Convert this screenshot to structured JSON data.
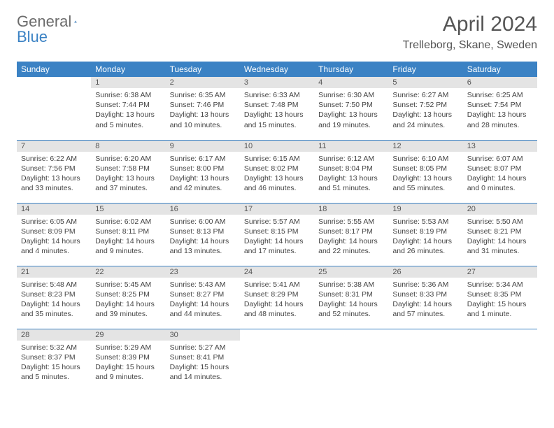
{
  "logo": {
    "text_general": "General",
    "text_blue": "Blue"
  },
  "title": "April 2024",
  "location": "Trelleborg, Skane, Sweden",
  "colors": {
    "header_bg": "#3b82c4",
    "header_text": "#ffffff",
    "daynum_bg": "#e4e4e4",
    "row_divider": "#3b82c4",
    "body_text": "#444444",
    "title_text": "#555555"
  },
  "weekday_headers": [
    "Sunday",
    "Monday",
    "Tuesday",
    "Wednesday",
    "Thursday",
    "Friday",
    "Saturday"
  ],
  "weeks": [
    [
      null,
      {
        "n": "1",
        "sunrise": "Sunrise: 6:38 AM",
        "sunset": "Sunset: 7:44 PM",
        "daylight": "Daylight: 13 hours and 5 minutes."
      },
      {
        "n": "2",
        "sunrise": "Sunrise: 6:35 AM",
        "sunset": "Sunset: 7:46 PM",
        "daylight": "Daylight: 13 hours and 10 minutes."
      },
      {
        "n": "3",
        "sunrise": "Sunrise: 6:33 AM",
        "sunset": "Sunset: 7:48 PM",
        "daylight": "Daylight: 13 hours and 15 minutes."
      },
      {
        "n": "4",
        "sunrise": "Sunrise: 6:30 AM",
        "sunset": "Sunset: 7:50 PM",
        "daylight": "Daylight: 13 hours and 19 minutes."
      },
      {
        "n": "5",
        "sunrise": "Sunrise: 6:27 AM",
        "sunset": "Sunset: 7:52 PM",
        "daylight": "Daylight: 13 hours and 24 minutes."
      },
      {
        "n": "6",
        "sunrise": "Sunrise: 6:25 AM",
        "sunset": "Sunset: 7:54 PM",
        "daylight": "Daylight: 13 hours and 28 minutes."
      }
    ],
    [
      {
        "n": "7",
        "sunrise": "Sunrise: 6:22 AM",
        "sunset": "Sunset: 7:56 PM",
        "daylight": "Daylight: 13 hours and 33 minutes."
      },
      {
        "n": "8",
        "sunrise": "Sunrise: 6:20 AM",
        "sunset": "Sunset: 7:58 PM",
        "daylight": "Daylight: 13 hours and 37 minutes."
      },
      {
        "n": "9",
        "sunrise": "Sunrise: 6:17 AM",
        "sunset": "Sunset: 8:00 PM",
        "daylight": "Daylight: 13 hours and 42 minutes."
      },
      {
        "n": "10",
        "sunrise": "Sunrise: 6:15 AM",
        "sunset": "Sunset: 8:02 PM",
        "daylight": "Daylight: 13 hours and 46 minutes."
      },
      {
        "n": "11",
        "sunrise": "Sunrise: 6:12 AM",
        "sunset": "Sunset: 8:04 PM",
        "daylight": "Daylight: 13 hours and 51 minutes."
      },
      {
        "n": "12",
        "sunrise": "Sunrise: 6:10 AM",
        "sunset": "Sunset: 8:05 PM",
        "daylight": "Daylight: 13 hours and 55 minutes."
      },
      {
        "n": "13",
        "sunrise": "Sunrise: 6:07 AM",
        "sunset": "Sunset: 8:07 PM",
        "daylight": "Daylight: 14 hours and 0 minutes."
      }
    ],
    [
      {
        "n": "14",
        "sunrise": "Sunrise: 6:05 AM",
        "sunset": "Sunset: 8:09 PM",
        "daylight": "Daylight: 14 hours and 4 minutes."
      },
      {
        "n": "15",
        "sunrise": "Sunrise: 6:02 AM",
        "sunset": "Sunset: 8:11 PM",
        "daylight": "Daylight: 14 hours and 9 minutes."
      },
      {
        "n": "16",
        "sunrise": "Sunrise: 6:00 AM",
        "sunset": "Sunset: 8:13 PM",
        "daylight": "Daylight: 14 hours and 13 minutes."
      },
      {
        "n": "17",
        "sunrise": "Sunrise: 5:57 AM",
        "sunset": "Sunset: 8:15 PM",
        "daylight": "Daylight: 14 hours and 17 minutes."
      },
      {
        "n": "18",
        "sunrise": "Sunrise: 5:55 AM",
        "sunset": "Sunset: 8:17 PM",
        "daylight": "Daylight: 14 hours and 22 minutes."
      },
      {
        "n": "19",
        "sunrise": "Sunrise: 5:53 AM",
        "sunset": "Sunset: 8:19 PM",
        "daylight": "Daylight: 14 hours and 26 minutes."
      },
      {
        "n": "20",
        "sunrise": "Sunrise: 5:50 AM",
        "sunset": "Sunset: 8:21 PM",
        "daylight": "Daylight: 14 hours and 31 minutes."
      }
    ],
    [
      {
        "n": "21",
        "sunrise": "Sunrise: 5:48 AM",
        "sunset": "Sunset: 8:23 PM",
        "daylight": "Daylight: 14 hours and 35 minutes."
      },
      {
        "n": "22",
        "sunrise": "Sunrise: 5:45 AM",
        "sunset": "Sunset: 8:25 PM",
        "daylight": "Daylight: 14 hours and 39 minutes."
      },
      {
        "n": "23",
        "sunrise": "Sunrise: 5:43 AM",
        "sunset": "Sunset: 8:27 PM",
        "daylight": "Daylight: 14 hours and 44 minutes."
      },
      {
        "n": "24",
        "sunrise": "Sunrise: 5:41 AM",
        "sunset": "Sunset: 8:29 PM",
        "daylight": "Daylight: 14 hours and 48 minutes."
      },
      {
        "n": "25",
        "sunrise": "Sunrise: 5:38 AM",
        "sunset": "Sunset: 8:31 PM",
        "daylight": "Daylight: 14 hours and 52 minutes."
      },
      {
        "n": "26",
        "sunrise": "Sunrise: 5:36 AM",
        "sunset": "Sunset: 8:33 PM",
        "daylight": "Daylight: 14 hours and 57 minutes."
      },
      {
        "n": "27",
        "sunrise": "Sunrise: 5:34 AM",
        "sunset": "Sunset: 8:35 PM",
        "daylight": "Daylight: 15 hours and 1 minute."
      }
    ],
    [
      {
        "n": "28",
        "sunrise": "Sunrise: 5:32 AM",
        "sunset": "Sunset: 8:37 PM",
        "daylight": "Daylight: 15 hours and 5 minutes."
      },
      {
        "n": "29",
        "sunrise": "Sunrise: 5:29 AM",
        "sunset": "Sunset: 8:39 PM",
        "daylight": "Daylight: 15 hours and 9 minutes."
      },
      {
        "n": "30",
        "sunrise": "Sunrise: 5:27 AM",
        "sunset": "Sunset: 8:41 PM",
        "daylight": "Daylight: 15 hours and 14 minutes."
      },
      null,
      null,
      null,
      null
    ]
  ]
}
